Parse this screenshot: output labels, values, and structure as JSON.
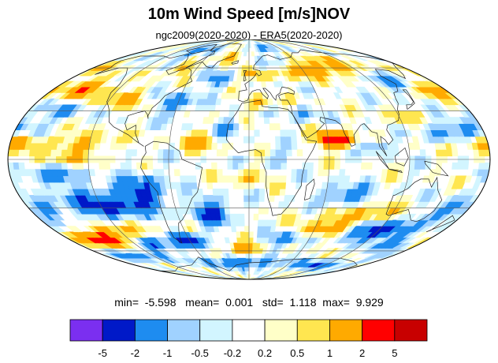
{
  "title": "10m Wind Speed [m/s]NOV",
  "subtitle": "ngc2009(2020-2020) - ERA5(2020-2020)",
  "stats": {
    "min_label": "min=",
    "min_value": "-5.598",
    "mean_label": "mean=",
    "mean_value": "0.001",
    "std_label": "std=",
    "std_value": "1.118",
    "max_label": "max=",
    "max_value": "9.929"
  },
  "map": {
    "projection": "mollweide",
    "ocean_base_color": "#ffffff"
  },
  "colorbar": {
    "colors": [
      "#7b2ff0",
      "#0019c8",
      "#1e8cf0",
      "#a0d2ff",
      "#d2f5ff",
      "#ffffff",
      "#ffffc8",
      "#ffe650",
      "#ffaa00",
      "#ff0000",
      "#c80000"
    ],
    "tick_labels": [
      "-5",
      "-2",
      "-1",
      "-0.5",
      "-0.2",
      "0.2",
      "0.5",
      "1",
      "2",
      "5"
    ]
  }
}
